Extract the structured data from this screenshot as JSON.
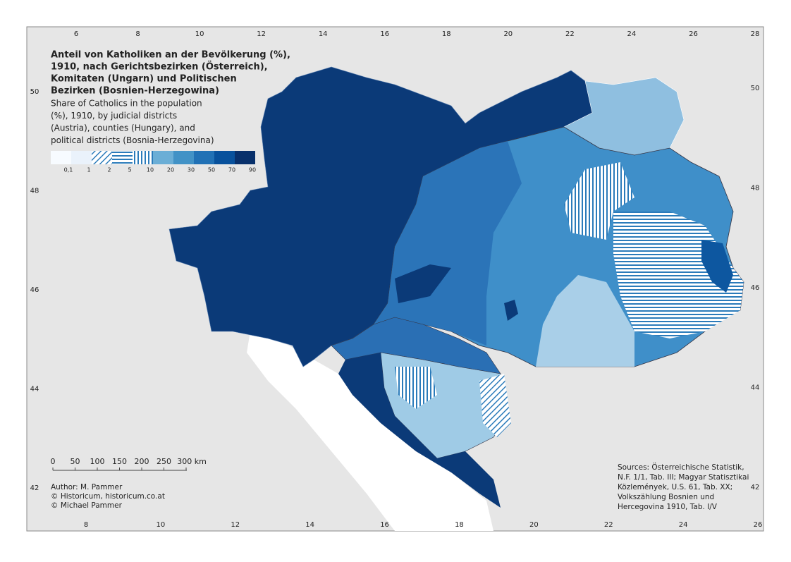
{
  "map": {
    "title_lines": [
      "Anteil von Katholiken an der Bevölkerung (%),",
      "1910, nach Gerichtsbezirken (Österreich),",
      "Komitaten (Ungarn) und Politischen",
      "Bezirken (Bosnien-Herzegowina)"
    ],
    "subtitle_lines": [
      "Share of Catholics in the population",
      "(%), 1910, by judicial districts",
      "(Austria), counties (Hungary), and",
      "political districts (Bosnia-Herzegovina)"
    ],
    "legend": {
      "labels": [
        "0,1",
        "1",
        "2",
        "5",
        "10",
        "20",
        "30",
        "50",
        "70",
        "90"
      ],
      "colors": [
        "#f7fbff",
        "#eaf2fb",
        "#dbe9f6",
        "#c6dbef",
        "#9ecae1",
        "#6baed6",
        "#4292c6",
        "#2171b5",
        "#08519c",
        "#08306b"
      ]
    },
    "axes": {
      "top": [
        6,
        8,
        10,
        12,
        14,
        16,
        18,
        20,
        22,
        24,
        26,
        28
      ],
      "bottom": [
        8,
        10,
        12,
        14,
        16,
        18,
        20,
        22,
        24,
        26
      ],
      "left": [
        50,
        48,
        46,
        44,
        42
      ],
      "right": [
        50,
        48,
        46,
        44,
        42
      ]
    },
    "scale_bar": [
      "0",
      "50",
      "100",
      "150",
      "200",
      "250",
      "300 km"
    ],
    "author_lines": [
      "Author: M. Pammer",
      "© Historicum, historicum.co.at",
      "© Michael Pammer"
    ],
    "source_lines": [
      "Sources: Österreichische Statistik,",
      "N.F. 1/1, Tab. III; Magyar Statisztikai",
      "Közlemények, U.S. 61, Tab. XX;",
      "Volkszählung Bosnien und",
      "Hercegovina 1910, Tab. I/V"
    ]
  }
}
